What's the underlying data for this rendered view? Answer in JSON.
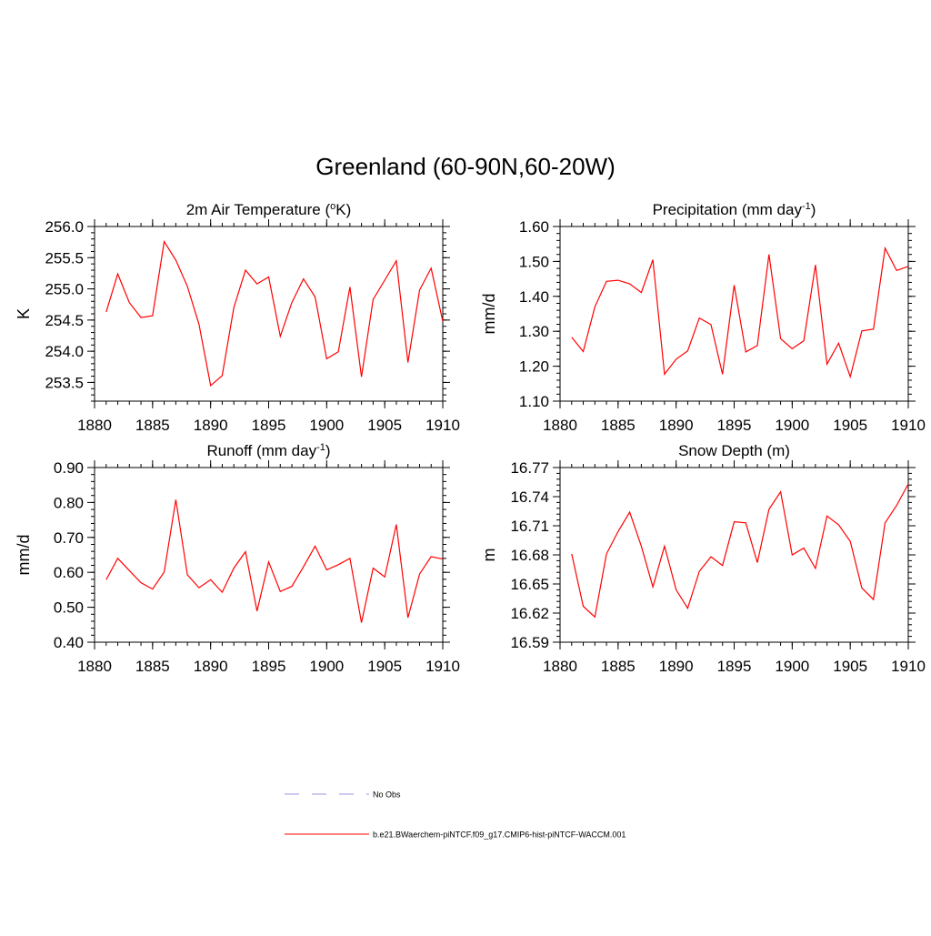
{
  "figure": {
    "title": "Greenland (60-90N,60-20W)"
  },
  "legend": {
    "entries": [
      {
        "label": "No Obs",
        "color": "#9999dd",
        "style": "dashed"
      },
      {
        "label": "b.e21.BWaerchem-piNTCF.f09_g17.CMIP6-hist-piNTCF-WACCM.001",
        "color": "#ff0000",
        "style": "solid"
      }
    ]
  },
  "chart_data": [
    {
      "type": "line",
      "title": "2m Air Temperature (",
      "title_sup": "o",
      "title_after": "K)",
      "ylabel": "K",
      "xlim": [
        1880,
        1910
      ],
      "ylim": [
        253.2,
        256.0
      ],
      "xticks": [
        1880,
        1885,
        1890,
        1895,
        1900,
        1905,
        1910
      ],
      "yticks": [
        253.5,
        254.0,
        254.5,
        255.0,
        255.5,
        256.0
      ],
      "ytick_labels": [
        "253.5",
        "254.0",
        "254.5",
        "255.0",
        "255.5",
        "256.0"
      ],
      "yminor": 0.1,
      "series": [
        {
          "name": "b.e21.BWaerchem-piNTCF.f09_g17.CMIP6-hist-piNTCF-WACCM.001",
          "color": "#ff0000",
          "x": [
            1881,
            1882,
            1883,
            1884,
            1885,
            1886,
            1887,
            1888,
            1889,
            1890,
            1891,
            1892,
            1893,
            1894,
            1895,
            1896,
            1897,
            1898,
            1899,
            1900,
            1901,
            1902,
            1903,
            1904,
            1905,
            1906,
            1907,
            1908,
            1909,
            1910
          ],
          "y": [
            254.63,
            255.24,
            254.78,
            254.54,
            254.57,
            255.76,
            255.46,
            255.04,
            254.43,
            253.45,
            253.61,
            254.7,
            255.3,
            255.08,
            255.19,
            254.24,
            254.78,
            255.16,
            254.87,
            253.88,
            253.99,
            255.03,
            253.59,
            254.83,
            255.14,
            255.45,
            253.82,
            254.98,
            255.33,
            254.48
          ]
        }
      ]
    },
    {
      "type": "line",
      "title": "Precipitation (mm day",
      "title_sup": "-1",
      "title_after": ")",
      "ylabel": "mm/d",
      "xlim": [
        1880,
        1910
      ],
      "ylim": [
        1.1,
        1.6
      ],
      "xticks": [
        1880,
        1885,
        1890,
        1895,
        1900,
        1905,
        1910
      ],
      "yticks": [
        1.1,
        1.2,
        1.3,
        1.4,
        1.5,
        1.6
      ],
      "ytick_labels": [
        "1.10",
        "1.20",
        "1.30",
        "1.40",
        "1.50",
        "1.60"
      ],
      "yminor": 0.02,
      "series": [
        {
          "name": "b.e21.BWaerchem-piNTCF.f09_g17.CMIP6-hist-piNTCF-WACCM.001",
          "color": "#ff0000",
          "x": [
            1881,
            1882,
            1883,
            1884,
            1885,
            1886,
            1887,
            1888,
            1889,
            1890,
            1891,
            1892,
            1893,
            1894,
            1895,
            1896,
            1897,
            1898,
            1899,
            1900,
            1901,
            1902,
            1903,
            1904,
            1905,
            1906,
            1907,
            1908,
            1909,
            1910
          ],
          "y": [
            1.283,
            1.242,
            1.37,
            1.443,
            1.446,
            1.436,
            1.411,
            1.505,
            1.177,
            1.22,
            1.244,
            1.338,
            1.319,
            1.177,
            1.432,
            1.241,
            1.259,
            1.52,
            1.279,
            1.25,
            1.273,
            1.49,
            1.206,
            1.266,
            1.17,
            1.301,
            1.306,
            1.538,
            1.474,
            1.486
          ]
        }
      ]
    },
    {
      "type": "line",
      "title": "Runoff (mm day",
      "title_sup": "-1",
      "title_after": ")",
      "ylabel": "mm/d",
      "xlim": [
        1880,
        1910
      ],
      "ylim": [
        0.4,
        0.9
      ],
      "xticks": [
        1880,
        1885,
        1890,
        1895,
        1900,
        1905,
        1910
      ],
      "yticks": [
        0.4,
        0.5,
        0.6,
        0.7,
        0.8,
        0.9
      ],
      "ytick_labels": [
        "0.40",
        "0.50",
        "0.60",
        "0.70",
        "0.80",
        "0.90"
      ],
      "yminor": 0.02,
      "series": [
        {
          "name": "b.e21.BWaerchem-piNTCF.f09_g17.CMIP6-hist-piNTCF-WACCM.001",
          "color": "#ff0000",
          "x": [
            1881,
            1882,
            1883,
            1884,
            1885,
            1886,
            1887,
            1888,
            1889,
            1890,
            1891,
            1892,
            1893,
            1894,
            1895,
            1896,
            1897,
            1898,
            1899,
            1900,
            1901,
            1902,
            1903,
            1904,
            1905,
            1906,
            1907,
            1908,
            1909,
            1910
          ],
          "y": [
            0.579,
            0.64,
            0.605,
            0.57,
            0.552,
            0.601,
            0.808,
            0.593,
            0.556,
            0.579,
            0.543,
            0.612,
            0.659,
            0.489,
            0.63,
            0.545,
            0.56,
            0.616,
            0.675,
            0.607,
            0.622,
            0.64,
            0.456,
            0.612,
            0.587,
            0.737,
            0.47,
            0.595,
            0.645,
            0.638
          ]
        }
      ]
    },
    {
      "type": "line",
      "title": "Snow Depth (m)",
      "title_sup": "",
      "title_after": "",
      "ylabel": "m",
      "xlim": [
        1880,
        1910
      ],
      "ylim": [
        16.59,
        16.77
      ],
      "xticks": [
        1880,
        1885,
        1890,
        1895,
        1900,
        1905,
        1910
      ],
      "yticks": [
        16.59,
        16.62,
        16.65,
        16.68,
        16.71,
        16.74,
        16.77
      ],
      "ytick_labels": [
        "16.59",
        "16.62",
        "16.65",
        "16.68",
        "16.71",
        "16.74",
        "16.77"
      ],
      "yminor": 0.006,
      "series": [
        {
          "name": "b.e21.BWaerchem-piNTCF.f09_g17.CMIP6-hist-piNTCF-WACCM.001",
          "color": "#ff0000",
          "x": [
            1881,
            1882,
            1883,
            1884,
            1885,
            1886,
            1887,
            1888,
            1889,
            1890,
            1891,
            1892,
            1893,
            1894,
            1895,
            1896,
            1897,
            1898,
            1899,
            1900,
            1901,
            1902,
            1903,
            1904,
            1905,
            1906,
            1907,
            1908,
            1909,
            1910
          ],
          "y": [
            16.681,
            16.627,
            16.616,
            16.681,
            16.704,
            16.724,
            16.689,
            16.647,
            16.689,
            16.644,
            16.625,
            16.663,
            16.678,
            16.669,
            16.714,
            16.713,
            16.672,
            16.727,
            16.745,
            16.68,
            16.687,
            16.666,
            16.72,
            16.711,
            16.694,
            16.646,
            16.634,
            16.713,
            16.731,
            16.753
          ]
        }
      ]
    }
  ]
}
